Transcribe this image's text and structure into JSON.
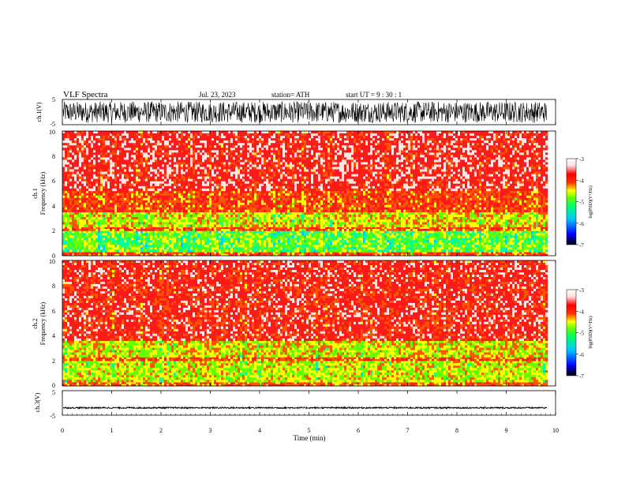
{
  "header": {
    "title": "VLF Spectra",
    "date": "Jul. 23, 2023",
    "station": "station= ATH",
    "start_ut": "start UT = 9 : 30 : 1"
  },
  "colors": {
    "colormap": [
      "#000000",
      "#0000ff",
      "#00c8ff",
      "#00ff66",
      "#44ff00",
      "#ffff00",
      "#ff3300",
      "#ff0000",
      "#ffdede",
      "#ffffff"
    ],
    "waveform": "#000000",
    "background": "#ffffff"
  },
  "chart_data": [
    {
      "type": "line",
      "name": "ch1-waveform",
      "ylabel": "ch.1(V)",
      "ylim": [
        -5,
        5
      ],
      "yticks": [
        "5",
        "-5"
      ],
      "x_range_min": [
        0,
        9.83
      ],
      "amplitude_v": 4.5,
      "description_values": "dense oscillation saturating near ±5 V"
    },
    {
      "type": "heatmap",
      "name": "ch1-spectrogram",
      "ylabel_channel": "ch.1",
      "ylabel": "Frequency (kHz)",
      "ylim": [
        0,
        10
      ],
      "yticks": [
        "0",
        "2",
        "4",
        "6",
        "8",
        "10"
      ],
      "x_range_min": [
        0,
        9.83
      ],
      "colorbar": {
        "label": "log(PSD)(V²/Hz)",
        "range": [
          -7,
          -3
        ],
        "ticks": [
          "-3",
          "-4",
          "-5",
          "-6",
          "-7"
        ]
      },
      "bands_khz": [
        {
          "from": 0.0,
          "to": 0.3,
          "log_psd": -4.0
        },
        {
          "from": 0.3,
          "to": 2.0,
          "log_psd": -4.9
        },
        {
          "from": 2.0,
          "to": 2.3,
          "log_psd": -4.0
        },
        {
          "from": 2.3,
          "to": 3.5,
          "log_psd": -4.5
        },
        {
          "from": 3.5,
          "to": 5.2,
          "log_psd": -3.9
        },
        {
          "from": 5.2,
          "to": 10.0,
          "log_psd": -3.5
        }
      ]
    },
    {
      "type": "heatmap",
      "name": "ch2-spectrogram",
      "ylabel_channel": "ch.2",
      "ylabel": "Frequency (kHz)",
      "ylim": [
        0,
        10
      ],
      "yticks": [
        "0",
        "2",
        "4",
        "6",
        "8",
        "10"
      ],
      "x_range_min": [
        0,
        9.83
      ],
      "colorbar": {
        "label": "log(PSD)(V²/Hz)",
        "range": [
          -7,
          -3
        ],
        "ticks": [
          "-3",
          "-4",
          "-5",
          "-6",
          "-7"
        ]
      },
      "bands_khz": [
        {
          "from": 0.0,
          "to": 0.3,
          "log_psd": -4.0
        },
        {
          "from": 0.3,
          "to": 2.0,
          "log_psd": -4.6
        },
        {
          "from": 2.0,
          "to": 2.3,
          "log_psd": -4.0
        },
        {
          "from": 2.3,
          "to": 3.6,
          "log_psd": -4.5
        },
        {
          "from": 3.6,
          "to": 10.0,
          "log_psd": -3.6
        }
      ]
    },
    {
      "type": "line",
      "name": "ch3-waveform",
      "ylabel": "ch.3(V)",
      "ylim": [
        -5,
        5
      ],
      "yticks": [
        "5",
        "-5"
      ],
      "x_range_min": [
        0,
        9.83
      ],
      "offset_v": -2,
      "amplitude_v": 0.3
    }
  ],
  "xaxis": {
    "label": "Time (min)",
    "ticks": [
      "0",
      "1",
      "2",
      "3",
      "4",
      "5",
      "6",
      "7",
      "8",
      "9",
      "10"
    ],
    "xlim": [
      0,
      10
    ]
  }
}
